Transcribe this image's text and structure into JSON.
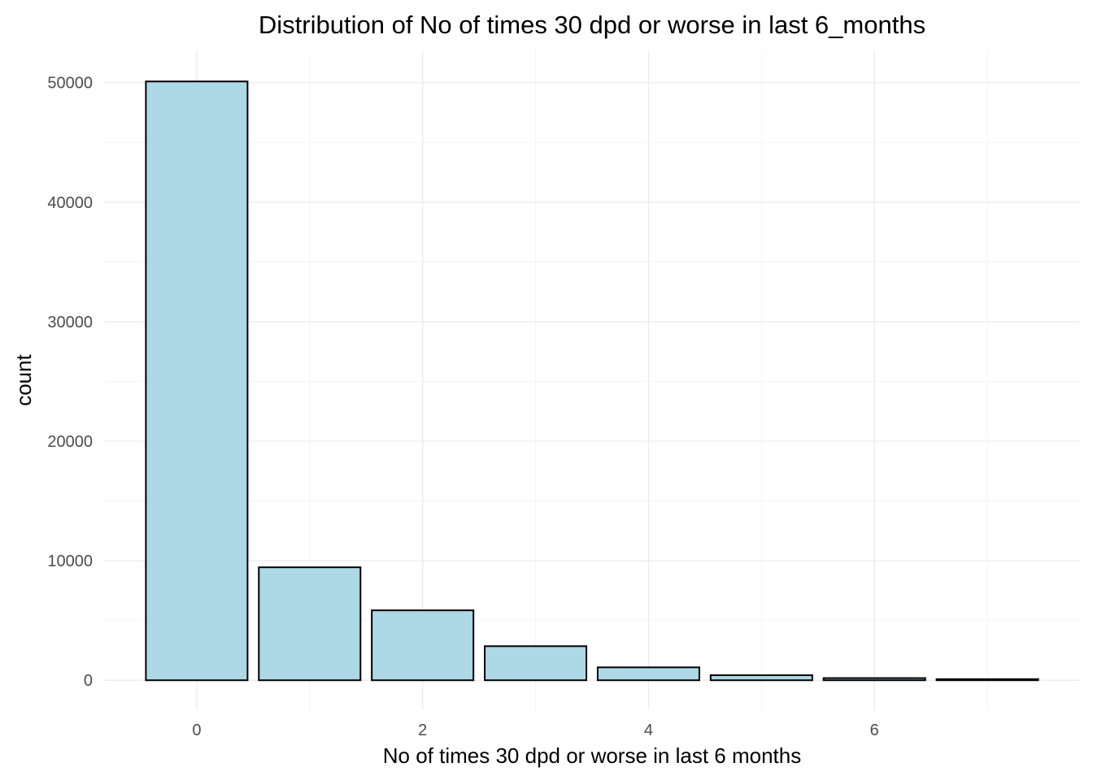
{
  "chart_data": {
    "type": "bar",
    "title": "Distribution of No of times 30 dpd or worse in last 6_months",
    "xlabel": "No of times 30 dpd or worse in last 6 months",
    "ylabel": "count",
    "x": [
      0,
      1,
      2,
      3,
      4,
      5,
      6,
      7
    ],
    "values": [
      50100,
      9450,
      5850,
      2850,
      1080,
      420,
      180,
      90
    ],
    "xlim": [
      -0.82,
      7.82
    ],
    "ylim": [
      -2500,
      52700
    ],
    "x_ticks": [
      "0",
      "2",
      "4",
      "6"
    ],
    "y_ticks": [
      "0",
      "10000",
      "20000",
      "30000",
      "40000",
      "50000"
    ],
    "grid": true,
    "legend": "none",
    "colors": {
      "bar_fill": "#add8e6",
      "bar_outline": "#000000",
      "grid_major": "#ebebeb",
      "grid_minor": "#f3f3f3"
    }
  }
}
